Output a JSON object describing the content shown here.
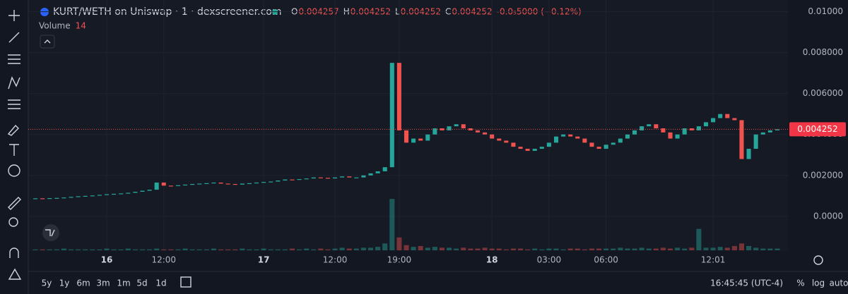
{
  "header": {
    "symbol": "KURT/WETH on Uniswap · 1 · dexscreener.com",
    "ohlc": [
      {
        "label": "O",
        "value": 0.004257
      },
      {
        "label": "H",
        "value": 0.004252
      },
      {
        "label": "L",
        "value": 0.004252
      },
      {
        "label": "C",
        "value": 0.004252
      }
    ],
    "change": "-0.0₅5000 (−0.12%)"
  },
  "chart_data": {
    "type": "candlestick",
    "categories": [
      null,
      null,
      null,
      null,
      null,
      null,
      null,
      null,
      null,
      null,
      "16",
      null,
      null,
      null,
      null,
      null,
      null,
      null,
      "12:00",
      null,
      null,
      null,
      null,
      null,
      null,
      null,
      null,
      null,
      null,
      null,
      null,
      null,
      "17",
      null,
      null,
      null,
      null,
      null,
      null,
      null,
      null,
      null,
      "12:00",
      null,
      null,
      null,
      null,
      null,
      null,
      null,
      null,
      "19:00",
      null,
      null,
      null,
      null,
      null,
      null,
      null,
      null,
      null,
      null,
      null,
      null,
      "18",
      null,
      null,
      null,
      null,
      null,
      null,
      null,
      "03:00",
      null,
      null,
      null,
      null,
      null,
      null,
      null,
      "06:00",
      null,
      null,
      null,
      null,
      null,
      null,
      null,
      null,
      null,
      null,
      null,
      null,
      null,
      null,
      "12:01",
      null,
      null,
      null,
      null,
      null,
      null,
      null,
      null,
      null
    ],
    "values": [
      0.00088,
      0.00087,
      0.00089,
      0.0009,
      0.00092,
      0.00095,
      0.00098,
      0.001,
      0.00102,
      0.00105,
      0.00108,
      0.0011,
      0.00112,
      0.00115,
      0.0012,
      0.00125,
      0.0013,
      0.00165,
      0.0015,
      0.00148,
      0.00152,
      0.00155,
      0.00158,
      0.0016,
      0.00162,
      0.00165,
      0.0016,
      0.00158,
      0.00155,
      0.0016,
      0.00162,
      0.00165,
      0.00168,
      0.0017,
      0.00175,
      0.0018,
      0.00178,
      0.00182,
      0.00185,
      0.0019,
      0.00188,
      0.00185,
      0.0019,
      0.00195,
      0.0019,
      0.0019,
      0.002,
      0.0021,
      0.0022,
      0.0024,
      0.0075,
      0.0042,
      0.0036,
      0.0038,
      0.0037,
      0.004,
      0.0043,
      0.0042,
      0.0044,
      0.0045,
      0.0043,
      0.0042,
      0.0041,
      0.004,
      0.0038,
      0.0037,
      0.0036,
      0.0034,
      0.0033,
      0.0032,
      0.0033,
      0.0034,
      0.0036,
      0.0039,
      0.004,
      0.0039,
      0.0038,
      0.0036,
      0.0034,
      0.0033,
      0.0035,
      0.0036,
      0.0038,
      0.004,
      0.0042,
      0.0044,
      0.0045,
      0.0043,
      0.0041,
      0.0038,
      0.004,
      0.0043,
      0.0042,
      0.0044,
      0.0046,
      0.0048,
      0.005,
      0.0048,
      0.0047,
      0.0028,
      0.0033,
      0.004,
      0.0041,
      0.0042,
      0.004252
    ],
    "up_color": "#26a69a",
    "down_color": "#ef5350",
    "ylim": [
      -0.00166,
      0.0104
    ],
    "yticks": [
      {
        "value": 0.01,
        "label": "0.01000"
      },
      {
        "value": 0.008,
        "label": "0.008000"
      },
      {
        "value": 0.006,
        "label": "0.006000"
      },
      {
        "value": 0.004,
        "label": "0.004000"
      },
      {
        "value": 0.002,
        "label": "0.002000"
      },
      {
        "value": 0,
        "label": "0.0000"
      }
    ],
    "grid": true,
    "last_price": 0.004252,
    "volume": {
      "name": "Volume",
      "legend_value": 14,
      "axis": "y2",
      "values": [
        1,
        1,
        1,
        1,
        2,
        1,
        1,
        1,
        1,
        1,
        2,
        1,
        1,
        2,
        1,
        1,
        1,
        2,
        1,
        1,
        1,
        2,
        1,
        1,
        1,
        2,
        1,
        1,
        1,
        2,
        1,
        1,
        2,
        1,
        1,
        1,
        2,
        1,
        2,
        1,
        2,
        1,
        2,
        3,
        2,
        2,
        3,
        3,
        4,
        8,
        60,
        15,
        6,
        4,
        5,
        3,
        4,
        3,
        3,
        2,
        3,
        2,
        2,
        3,
        2,
        2,
        1,
        2,
        2,
        1,
        2,
        1,
        2,
        2,
        1,
        2,
        2,
        1,
        2,
        2,
        2,
        2,
        3,
        2,
        2,
        3,
        2,
        2,
        3,
        2,
        3,
        2,
        3,
        25,
        3,
        3,
        4,
        3,
        5,
        8,
        5,
        3,
        2,
        2,
        2
      ]
    },
    "y2lim": [
      0,
      70
    ]
  },
  "footer": {
    "ranges": [
      "5y",
      "1y",
      "6m",
      "3m",
      "1m",
      "5d",
      "1d"
    ],
    "time": "16:45:45 (UTC-4)",
    "scale_buttons": [
      "%",
      "log",
      "auto"
    ]
  }
}
